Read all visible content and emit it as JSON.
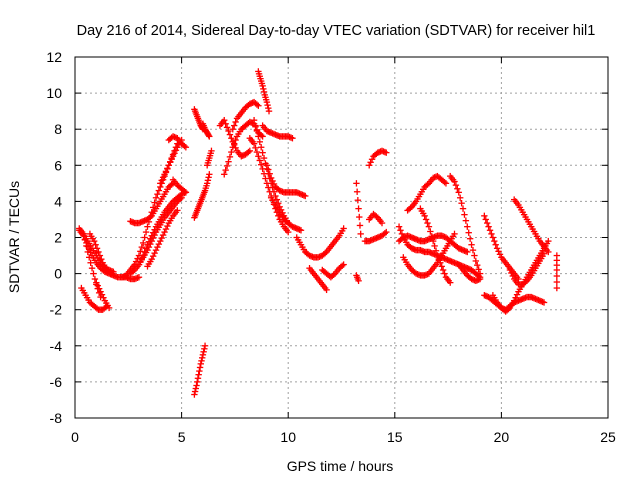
{
  "chart_data": {
    "type": "scatter",
    "title": "Day 216 of 2014, Sidereal Day-to-day VTEC variation (SDTVAR) for receiver hil1",
    "xlabel": "GPS time / hours",
    "ylabel": "SDTVAR / TECUs",
    "xlim": [
      0,
      25
    ],
    "ylim": [
      -8,
      12
    ],
    "xticks": [
      "0",
      "5",
      "10",
      "15",
      "20",
      "25"
    ],
    "yticks": [
      "-8",
      "-6",
      "-4",
      "-2",
      "0",
      "2",
      "4",
      "6",
      "8",
      "10",
      "12"
    ],
    "grid": true,
    "marker": "plus",
    "color": "#ff0000",
    "series": [
      {
        "name": "t1",
        "x": [
          0.2,
          0.4,
          0.6,
          0.8,
          1.0,
          1.2,
          1.4,
          1.6,
          1.8,
          2.0,
          2.2,
          2.4,
          2.6,
          2.8,
          3.0
        ],
        "y": [
          2.4,
          2.1,
          1.5,
          1.0,
          0.6,
          0.3,
          0.1,
          0.0,
          -0.1,
          -0.2,
          -0.2,
          -0.2,
          -0.3,
          -0.3,
          -0.2
        ]
      },
      {
        "name": "t2",
        "x": [
          0.2,
          0.4,
          0.6,
          0.8,
          1.0,
          1.2,
          1.4,
          1.6,
          1.8
        ],
        "y": [
          2.5,
          2.2,
          1.8,
          1.4,
          1.0,
          0.6,
          0.3,
          0.2,
          0.1
        ]
      },
      {
        "name": "t3",
        "x": [
          0.3,
          0.5,
          0.7,
          0.9,
          1.1,
          1.3,
          1.5
        ],
        "y": [
          -0.8,
          -1.2,
          -1.6,
          -1.8,
          -2.0,
          -2.0,
          -1.8
        ]
      },
      {
        "name": "t4",
        "x": [
          0.4,
          0.6,
          0.8,
          1.0,
          1.2
        ],
        "y": [
          2.2,
          1.2,
          0.3,
          -0.6,
          -1.3
        ]
      },
      {
        "name": "t5",
        "x": [
          0.7,
          0.9,
          1.1,
          1.3,
          1.5,
          1.7
        ],
        "y": [
          2.2,
          1.8,
          1.2,
          0.6,
          0.2,
          0.0
        ]
      },
      {
        "name": "t6",
        "x": [
          1.0,
          1.2,
          1.4,
          1.6
        ],
        "y": [
          -0.5,
          -1.0,
          -1.5,
          -1.9
        ]
      },
      {
        "name": "t7",
        "x": [
          2.2,
          2.4,
          2.6,
          2.8,
          3.0,
          3.2,
          3.4,
          3.6,
          3.8,
          4.0,
          4.2,
          4.4,
          4.6,
          4.8,
          5.0
        ],
        "y": [
          -0.2,
          -0.1,
          0.2,
          0.5,
          1.0,
          1.7,
          2.6,
          3.4,
          4.2,
          4.8,
          5.4,
          6.0,
          6.5,
          7.0,
          7.4
        ]
      },
      {
        "name": "t8",
        "x": [
          2.6,
          2.8,
          3.0,
          3.2,
          3.4,
          3.6,
          3.8,
          4.0,
          4.2,
          4.4,
          4.6,
          4.8,
          5.0
        ],
        "y": [
          0.0,
          0.2,
          0.5,
          0.9,
          1.3,
          1.8,
          2.3,
          2.7,
          3.1,
          3.4,
          3.7,
          4.0,
          4.2
        ]
      },
      {
        "name": "t9",
        "x": [
          2.6,
          2.8,
          3.0,
          3.2,
          3.4,
          3.6,
          3.8,
          4.0,
          4.2,
          4.4,
          4.6
        ],
        "y": [
          2.9,
          2.8,
          2.8,
          2.9,
          3.0,
          3.2,
          3.6,
          4.0,
          4.4,
          4.8,
          5.0
        ]
      },
      {
        "name": "t10",
        "x": [
          3.0,
          3.2,
          3.4,
          3.6,
          3.8,
          4.0,
          4.2,
          4.4,
          4.6,
          4.8,
          5.0,
          5.2
        ],
        "y": [
          0.5,
          1.0,
          1.6,
          2.1,
          2.6,
          3.0,
          3.4,
          3.7,
          4.0,
          4.2,
          4.4,
          4.5
        ]
      },
      {
        "name": "t11",
        "x": [
          3.4,
          3.6,
          3.8,
          4.0,
          4.2,
          4.4,
          4.6,
          4.8
        ],
        "y": [
          0.4,
          0.8,
          1.3,
          1.8,
          2.3,
          2.8,
          3.2,
          3.5
        ]
      },
      {
        "name": "t12",
        "x": [
          4.0,
          4.2,
          4.4,
          4.6,
          4.8
        ],
        "y": [
          5.0,
          5.5,
          6.0,
          6.6,
          7.2
        ]
      },
      {
        "name": "t13",
        "x": [
          4.4,
          4.6,
          4.8,
          5.0,
          5.2
        ],
        "y": [
          7.4,
          7.6,
          7.5,
          7.2,
          7.0
        ]
      },
      {
        "name": "t14",
        "x": [
          4.6,
          4.8,
          5.0,
          5.2
        ],
        "y": [
          5.2,
          4.9,
          4.7,
          4.5
        ]
      },
      {
        "name": "t15",
        "x": [
          5.6,
          5.7,
          5.8,
          5.9,
          6.0,
          6.1
        ],
        "y": [
          -6.7,
          -6.2,
          -5.6,
          -5.0,
          -4.5,
          -4.0
        ]
      },
      {
        "name": "t16",
        "x": [
          5.6,
          5.7,
          5.8,
          5.9,
          6.0,
          6.1,
          6.2,
          6.3
        ],
        "y": [
          3.1,
          3.4,
          3.7,
          4.0,
          4.3,
          4.6,
          5.0,
          5.5
        ]
      },
      {
        "name": "t17",
        "x": [
          5.6,
          5.7,
          5.8,
          5.9,
          6.0
        ],
        "y": [
          9.1,
          8.8,
          8.5,
          8.2,
          8.0
        ]
      },
      {
        "name": "t18",
        "x": [
          6.0,
          6.1,
          6.2,
          6.3
        ],
        "y": [
          8.3,
          8.0,
          7.8,
          7.6
        ]
      },
      {
        "name": "t19",
        "x": [
          6.2,
          6.3,
          6.4
        ],
        "y": [
          6.0,
          6.4,
          6.8
        ]
      },
      {
        "name": "t20",
        "x": [
          6.8,
          7.0,
          7.2,
          7.4,
          7.6,
          7.8,
          8.0,
          8.2
        ],
        "y": [
          8.2,
          8.5,
          7.9,
          7.3,
          6.8,
          6.5,
          6.6,
          6.8
        ]
      },
      {
        "name": "t21",
        "x": [
          7.0,
          7.2,
          7.4,
          7.6,
          7.8,
          8.0,
          8.2,
          8.4,
          8.6,
          8.8
        ],
        "y": [
          5.5,
          6.2,
          7.0,
          7.6,
          8.0,
          8.2,
          8.4,
          8.3,
          7.8,
          7.6
        ]
      },
      {
        "name": "t22",
        "x": [
          7.4,
          7.6,
          7.8,
          8.0,
          8.2,
          8.4,
          8.6
        ],
        "y": [
          8.0,
          8.6,
          8.9,
          9.2,
          9.4,
          9.5,
          9.3
        ]
      },
      {
        "name": "t23",
        "x": [
          8.6,
          8.7,
          8.8,
          8.9,
          9.0,
          9.1
        ],
        "y": [
          11.2,
          10.8,
          10.4,
          9.9,
          9.5,
          9.0
        ]
      },
      {
        "name": "t24",
        "x": [
          8.2,
          8.4,
          8.6,
          8.8,
          9.0,
          9.2,
          9.4,
          9.6,
          9.8,
          10.0
        ],
        "y": [
          7.5,
          7.2,
          6.5,
          5.8,
          5.0,
          4.3,
          3.6,
          3.0,
          2.6,
          2.3
        ]
      },
      {
        "name": "t25",
        "x": [
          8.4,
          8.6,
          8.8,
          9.0,
          9.2,
          9.4,
          9.6,
          9.8,
          10.0
        ],
        "y": [
          8.5,
          7.6,
          6.7,
          5.8,
          5.0,
          4.3,
          3.7,
          3.2,
          2.8
        ]
      },
      {
        "name": "t26",
        "x": [
          8.8,
          9.0,
          9.2,
          9.4,
          9.6,
          9.8,
          10.0,
          10.2
        ],
        "y": [
          8.2,
          7.9,
          7.8,
          7.7,
          7.6,
          7.6,
          7.6,
          7.5
        ]
      },
      {
        "name": "t27",
        "x": [
          9.0,
          9.2,
          9.4,
          9.6,
          9.8,
          10.0,
          10.2,
          10.4,
          10.6,
          10.8
        ],
        "y": [
          6.0,
          5.3,
          4.8,
          4.6,
          4.5,
          4.5,
          4.5,
          4.5,
          4.4,
          4.3
        ]
      },
      {
        "name": "t28",
        "x": [
          9.2,
          9.4,
          9.6,
          9.8,
          10.0,
          10.2,
          10.4,
          10.6
        ],
        "y": [
          4.2,
          3.8,
          3.4,
          3.0,
          2.8,
          2.6,
          2.5,
          2.4
        ]
      },
      {
        "name": "t29",
        "x": [
          10.4,
          10.6,
          10.8,
          11.0,
          11.2,
          11.4,
          11.6,
          11.8,
          12.0,
          12.2,
          12.4,
          12.6
        ],
        "y": [
          2.0,
          1.6,
          1.2,
          1.0,
          0.9,
          0.9,
          1.0,
          1.2,
          1.5,
          1.8,
          2.1,
          2.5
        ]
      },
      {
        "name": "t30",
        "x": [
          11.0,
          11.2,
          11.4,
          11.6,
          11.8
        ],
        "y": [
          0.3,
          0.0,
          -0.3,
          -0.6,
          -0.9
        ]
      },
      {
        "name": "t31",
        "x": [
          11.6,
          11.8,
          12.0,
          12.2,
          12.4,
          12.6
        ],
        "y": [
          0.2,
          0.0,
          -0.2,
          0.0,
          0.3,
          0.5
        ]
      },
      {
        "name": "t32",
        "x": [
          13.2,
          13.3,
          13.4
        ],
        "y": [
          5.0,
          3.6,
          2.2
        ]
      },
      {
        "name": "t33",
        "x": [
          13.2,
          13.3
        ],
        "y": [
          -0.1,
          -0.4
        ]
      },
      {
        "name": "t34",
        "x": [
          13.6,
          13.8,
          14.0,
          14.2,
          14.4,
          14.6
        ],
        "y": [
          1.8,
          1.8,
          1.9,
          2.0,
          2.1,
          2.3
        ]
      },
      {
        "name": "t35",
        "x": [
          13.8,
          14.0,
          14.2,
          14.4
        ],
        "y": [
          3.0,
          3.3,
          3.1,
          2.8
        ]
      },
      {
        "name": "t36",
        "x": [
          13.8,
          14.0,
          14.2,
          14.4,
          14.6
        ],
        "y": [
          6.0,
          6.5,
          6.7,
          6.8,
          6.7
        ]
      },
      {
        "name": "t37",
        "x": [
          15.2,
          15.4,
          15.6,
          15.8,
          16.0,
          16.2,
          16.4,
          16.6,
          16.8,
          17.0,
          17.2,
          17.4,
          17.6,
          17.8,
          18.0,
          18.2,
          18.4,
          18.6,
          18.8,
          19.0
        ],
        "y": [
          2.6,
          2.0,
          1.6,
          1.4,
          1.3,
          1.3,
          1.2,
          1.2,
          1.1,
          1.0,
          0.9,
          0.8,
          0.7,
          0.6,
          0.5,
          0.4,
          0.3,
          0.2,
          0.0,
          -0.2
        ]
      },
      {
        "name": "t38",
        "x": [
          15.2,
          15.4,
          15.6,
          15.8,
          16.0,
          16.2,
          16.4,
          16.6,
          16.8,
          17.0,
          17.2,
          17.4,
          17.6,
          17.8,
          18.0,
          18.2,
          18.4
        ],
        "y": [
          1.8,
          2.0,
          2.1,
          2.0,
          1.9,
          1.8,
          1.8,
          1.9,
          2.0,
          2.1,
          2.1,
          2.0,
          1.8,
          1.6,
          1.4,
          1.3,
          1.2
        ]
      },
      {
        "name": "t39",
        "x": [
          15.4,
          15.6,
          15.8,
          16.0,
          16.2,
          16.4,
          16.6,
          16.8,
          17.0,
          17.2,
          17.4,
          17.6,
          17.8
        ],
        "y": [
          0.9,
          0.5,
          0.2,
          0.0,
          -0.1,
          -0.1,
          0.0,
          0.3,
          0.6,
          1.0,
          1.4,
          1.8,
          2.2
        ]
      },
      {
        "name": "t40",
        "x": [
          15.6,
          15.8,
          16.0,
          16.2,
          16.4,
          16.6,
          16.8,
          17.0,
          17.2,
          17.4
        ],
        "y": [
          3.5,
          3.7,
          4.0,
          4.4,
          4.8,
          5.0,
          5.3,
          5.4,
          5.2,
          5.0
        ]
      },
      {
        "name": "t41",
        "x": [
          16.2,
          16.4,
          16.6,
          16.8,
          17.0,
          17.2,
          17.4,
          17.6
        ],
        "y": [
          3.6,
          3.2,
          2.6,
          1.8,
          1.0,
          0.4,
          -0.2,
          -0.5
        ]
      },
      {
        "name": "t42",
        "x": [
          17.6,
          17.8,
          18.0,
          18.2,
          18.4,
          18.6,
          18.8,
          19.0
        ],
        "y": [
          5.4,
          5.1,
          4.5,
          3.6,
          2.6,
          1.6,
          0.7,
          0.0
        ]
      },
      {
        "name": "t43",
        "x": [
          18.0,
          18.2,
          18.4,
          18.6,
          18.8,
          19.0
        ],
        "y": [
          0.5,
          0.2,
          -0.1,
          -0.3,
          -0.4,
          -0.3
        ]
      },
      {
        "name": "t44",
        "x": [
          19.2,
          19.4,
          19.6,
          19.8,
          20.0,
          20.2,
          20.4,
          20.6,
          20.8
        ],
        "y": [
          3.2,
          2.6,
          2.0,
          1.4,
          0.9,
          0.6,
          0.3,
          0.0,
          -0.3
        ]
      },
      {
        "name": "t45",
        "x": [
          19.2,
          19.4,
          19.6,
          19.8,
          20.0,
          20.2,
          20.4,
          20.6,
          20.8,
          21.0,
          21.2,
          21.4,
          21.6,
          21.8,
          22.0
        ],
        "y": [
          -1.2,
          -1.3,
          -1.5,
          -1.7,
          -1.9,
          -2.0,
          -1.8,
          -1.6,
          -1.5,
          -1.4,
          -1.3,
          -1.3,
          -1.4,
          -1.5,
          -1.6
        ]
      },
      {
        "name": "t46",
        "x": [
          19.6,
          19.8,
          20.0,
          20.2,
          20.4,
          20.6,
          20.8,
          21.0,
          21.2,
          21.4,
          21.6,
          21.8,
          22.0,
          22.2
        ],
        "y": [
          -1.2,
          -1.6,
          -1.9,
          -2.1,
          -1.9,
          -1.5,
          -1.0,
          -0.6,
          -0.2,
          0.2,
          0.6,
          1.0,
          1.4,
          1.8
        ]
      },
      {
        "name": "t47",
        "x": [
          20.4,
          20.6,
          20.8,
          21.0,
          21.2,
          21.4,
          21.6,
          21.8,
          22.0
        ],
        "y": [
          0.2,
          -0.3,
          -0.6,
          -0.6,
          -0.4,
          -0.1,
          0.3,
          0.7,
          1.1
        ]
      },
      {
        "name": "t48",
        "x": [
          20.6,
          20.8,
          21.0,
          21.2,
          21.4,
          21.6,
          21.8,
          22.0,
          22.2
        ],
        "y": [
          4.1,
          3.8,
          3.4,
          3.0,
          2.6,
          2.2,
          1.8,
          1.5,
          1.2
        ]
      },
      {
        "name": "t49",
        "x": [
          22.6,
          22.6,
          22.6
        ],
        "y": [
          1.0,
          0.2,
          -0.8
        ]
      }
    ]
  }
}
